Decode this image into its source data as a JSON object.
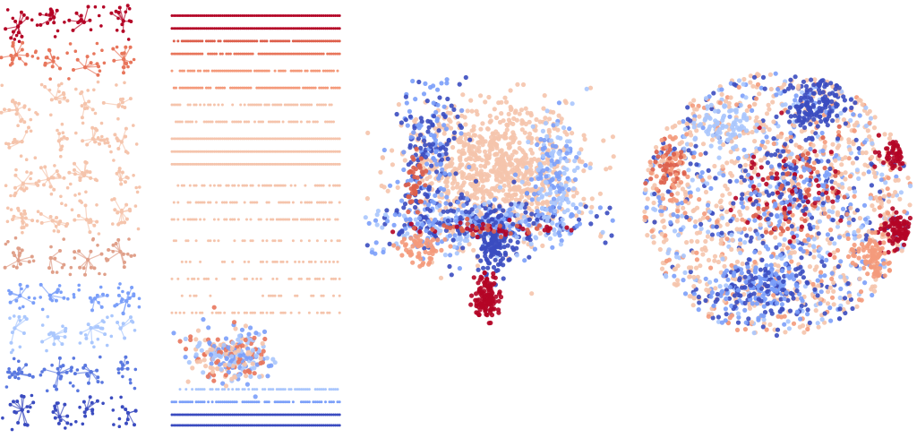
{
  "chart_data": [
    {
      "type": "scatter",
      "title": "",
      "layout": "graph-grid",
      "xlim": [
        0,
        1
      ],
      "ylim": [
        0,
        1
      ],
      "grid": false,
      "grid_cols": 4,
      "grid_rows": 11,
      "row_colors": [
        "#b40426",
        "#e8765c",
        "#f5c4ac",
        "#f5c4ac",
        "#f5c4ac",
        "#f5c4ac",
        "#e0a08a",
        "#7b9ff9",
        "#aac7fd",
        "#5a78e0",
        "#3b4cc0"
      ]
    },
    {
      "type": "scatter",
      "title": "",
      "layout": "dotted-rows",
      "xlim": [
        0,
        1
      ],
      "ylim": [
        0,
        1
      ],
      "grid": false,
      "rows": [
        {
          "y": 0.02,
          "color": "#b40426",
          "density": 1.0
        },
        {
          "y": 0.05,
          "color": "#b40426",
          "density": 1.0
        },
        {
          "y": 0.08,
          "color": "#dd5f4b",
          "density": 0.9
        },
        {
          "y": 0.11,
          "color": "#e8765c",
          "density": 0.9
        },
        {
          "y": 0.15,
          "color": "#f49a7b",
          "density": 0.8
        },
        {
          "y": 0.19,
          "color": "#f49a7b",
          "density": 0.8
        },
        {
          "y": 0.23,
          "color": "#f5c4ac",
          "density": 0.7
        },
        {
          "y": 0.27,
          "color": "#f5c4ac",
          "density": 0.7
        },
        {
          "y": 0.31,
          "color": "#f5c4ac",
          "density": 1.0
        },
        {
          "y": 0.34,
          "color": "#f5c4ac",
          "density": 1.0
        },
        {
          "y": 0.37,
          "color": "#f5c4ac",
          "density": 1.0
        },
        {
          "y": 0.42,
          "color": "#f5c4ac",
          "density": 0.6
        },
        {
          "y": 0.46,
          "color": "#f5c4ac",
          "density": 0.6
        },
        {
          "y": 0.5,
          "color": "#f5c4ac",
          "density": 0.6
        },
        {
          "y": 0.55,
          "color": "#f5c4ac",
          "density": 0.4
        },
        {
          "y": 0.6,
          "color": "#f5c4ac",
          "density": 0.4
        },
        {
          "y": 0.64,
          "color": "#f5c4ac",
          "density": 0.4
        },
        {
          "y": 0.68,
          "color": "#f5c4ac",
          "density": 0.3
        },
        {
          "y": 0.72,
          "color": "#f5c4ac",
          "density": 0.3
        },
        {
          "y": 0.9,
          "color": "#aac7fd",
          "density": 0.6
        },
        {
          "y": 0.93,
          "color": "#7b9ff9",
          "density": 0.8
        },
        {
          "y": 0.96,
          "color": "#3b4cc0",
          "density": 1.0
        },
        {
          "y": 0.985,
          "color": "#3b4cc0",
          "density": 1.0
        }
      ],
      "clusters": [
        {
          "x": 0.35,
          "y": 0.82,
          "sx": 0.12,
          "sy": 0.03,
          "n": 260,
          "colors": [
            "#f5c4ac",
            "#aac7fd",
            "#7b9ff9",
            "#e8765c"
          ]
        }
      ]
    },
    {
      "type": "scatter",
      "title": "",
      "layout": "clusters",
      "xlim": [
        0,
        1
      ],
      "ylim": [
        0,
        1
      ],
      "grid": false,
      "clusters": [
        {
          "x": 0.5,
          "y": 0.35,
          "sx": 0.16,
          "sy": 0.12,
          "n": 900,
          "colors": [
            "#f5c4ac"
          ]
        },
        {
          "x": 0.45,
          "y": 0.55,
          "sx": 0.2,
          "sy": 0.05,
          "n": 450,
          "colors": [
            "#3b4cc0",
            "#7b9ff9",
            "#aac7fd"
          ]
        },
        {
          "x": 0.25,
          "y": 0.3,
          "sx": 0.06,
          "sy": 0.15,
          "n": 220,
          "colors": [
            "#3b4cc0",
            "#7b9ff9"
          ]
        },
        {
          "x": 0.72,
          "y": 0.35,
          "sx": 0.05,
          "sy": 0.1,
          "n": 160,
          "colors": [
            "#aac7fd",
            "#7b9ff9"
          ]
        },
        {
          "x": 0.5,
          "y": 0.62,
          "sx": 0.03,
          "sy": 0.06,
          "n": 120,
          "colors": [
            "#3b4cc0"
          ]
        },
        {
          "x": 0.47,
          "y": 0.82,
          "sx": 0.025,
          "sy": 0.04,
          "n": 120,
          "colors": [
            "#b40426"
          ]
        },
        {
          "x": 0.22,
          "y": 0.65,
          "sx": 0.04,
          "sy": 0.03,
          "n": 60,
          "colors": [
            "#f49a7b"
          ]
        },
        {
          "x": 0.45,
          "y": 0.57,
          "sx": 0.15,
          "sy": 0.015,
          "n": 60,
          "colors": [
            "#b40426",
            "#dd5f4b"
          ]
        },
        {
          "x": 0.2,
          "y": 0.4,
          "sx": 0.02,
          "sy": 0.06,
          "n": 40,
          "colors": [
            "#dd5f4b"
          ]
        }
      ]
    },
    {
      "type": "scatter",
      "title": "",
      "layout": "disc",
      "xlim": [
        0,
        1
      ],
      "ylim": [
        0,
        1
      ],
      "grid": false,
      "clusters": [
        {
          "x": 0.5,
          "y": 0.5,
          "sx": 0.5,
          "sy": 0.5,
          "n": 1500,
          "colors": [
            "#f5c4ac",
            "#f5c4ac",
            "#f5c4ac",
            "#aac7fd",
            "#7b9ff9",
            "#3b4cc0",
            "#f49a7b"
          ],
          "uniform_disc": true
        },
        {
          "x": 0.55,
          "y": 0.45,
          "sx": 0.1,
          "sy": 0.1,
          "n": 250,
          "colors": [
            "#3b4cc0",
            "#b40426",
            "#dd5f4b",
            "#7b9ff9"
          ]
        },
        {
          "x": 0.65,
          "y": 0.12,
          "sx": 0.06,
          "sy": 0.05,
          "n": 150,
          "colors": [
            "#3b4cc0"
          ]
        },
        {
          "x": 0.45,
          "y": 0.82,
          "sx": 0.1,
          "sy": 0.05,
          "n": 220,
          "colors": [
            "#3b4cc0",
            "#7b9ff9"
          ]
        },
        {
          "x": 0.95,
          "y": 0.3,
          "sx": 0.03,
          "sy": 0.03,
          "n": 90,
          "colors": [
            "#b40426"
          ]
        },
        {
          "x": 0.95,
          "y": 0.6,
          "sx": 0.03,
          "sy": 0.03,
          "n": 90,
          "colors": [
            "#b40426"
          ]
        },
        {
          "x": 0.1,
          "y": 0.35,
          "sx": 0.04,
          "sy": 0.05,
          "n": 90,
          "colors": [
            "#f49a7b",
            "#dd5f4b"
          ]
        },
        {
          "x": 0.85,
          "y": 0.7,
          "sx": 0.04,
          "sy": 0.04,
          "n": 80,
          "colors": [
            "#f49a7b"
          ]
        },
        {
          "x": 0.3,
          "y": 0.2,
          "sx": 0.05,
          "sy": 0.04,
          "n": 80,
          "colors": [
            "#aac7fd"
          ]
        }
      ]
    }
  ]
}
